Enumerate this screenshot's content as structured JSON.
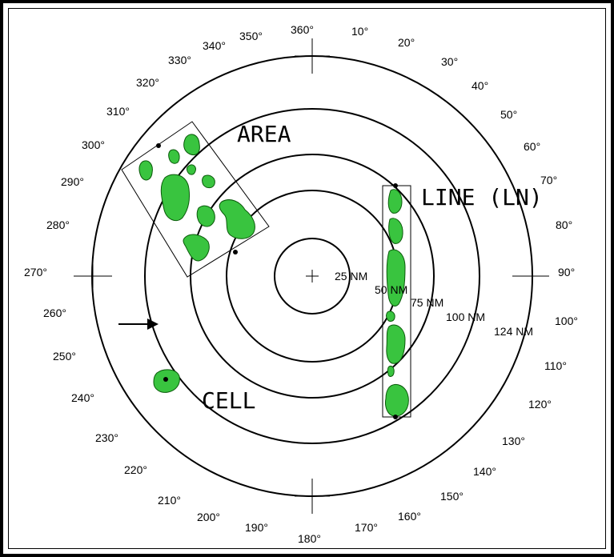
{
  "bearing_labels": [
    "360°",
    "10°",
    "20°",
    "30°",
    "40°",
    "50°",
    "60°",
    "70°",
    "80°",
    "90°",
    "100°",
    "110°",
    "120°",
    "130°",
    "140°",
    "150°",
    "160°",
    "170°",
    "180°",
    "190°",
    "200°",
    "210°",
    "220°",
    "230°",
    "240°",
    "250°",
    "260°",
    "270°",
    "280°",
    "290°",
    "300°",
    "310°",
    "320°",
    "330°",
    "340°",
    "350°"
  ],
  "range_labels": {
    "r25": "25 NM",
    "r50": "50 NM",
    "r75": "75 NM",
    "r100": "100 NM",
    "r124": "124 NM"
  },
  "labels": {
    "area": "AREA",
    "line": "LINE (LN)",
    "cell": "CELL"
  },
  "colors": {
    "echo_fill": "#39c43f",
    "echo_stroke": "#0a5a0a",
    "ink": "#000000"
  },
  "icons": {
    "arrow": "arrow-right-icon"
  }
}
